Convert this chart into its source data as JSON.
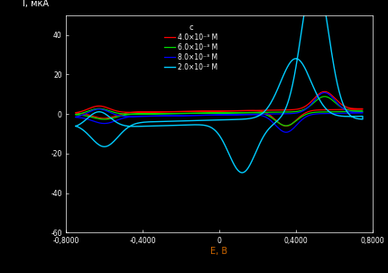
{
  "xlabel": "E, В",
  "ylabel": "I, мкА",
  "xlim": [
    -0.8,
    0.8
  ],
  "ylim": [
    -60,
    50
  ],
  "yticks": [
    40,
    20,
    0,
    -20,
    -40,
    -60
  ],
  "xticks": [
    -0.8,
    -0.4,
    0,
    0.4,
    0.8
  ],
  "legend_title": "c",
  "curves": [
    {
      "color": "#ff0000",
      "label": "4.0×10⁻³ M"
    },
    {
      "color": "#00dd00",
      "label": "6.0×10⁻³ M"
    },
    {
      "color": "#0000ff",
      "label": "8.0×10⁻³ M"
    },
    {
      "color": "#00ccff",
      "label": "2.0×10⁻² M"
    }
  ],
  "background": "#000000",
  "text_color": "#ffffff",
  "xlabel_color": "#cc6600"
}
